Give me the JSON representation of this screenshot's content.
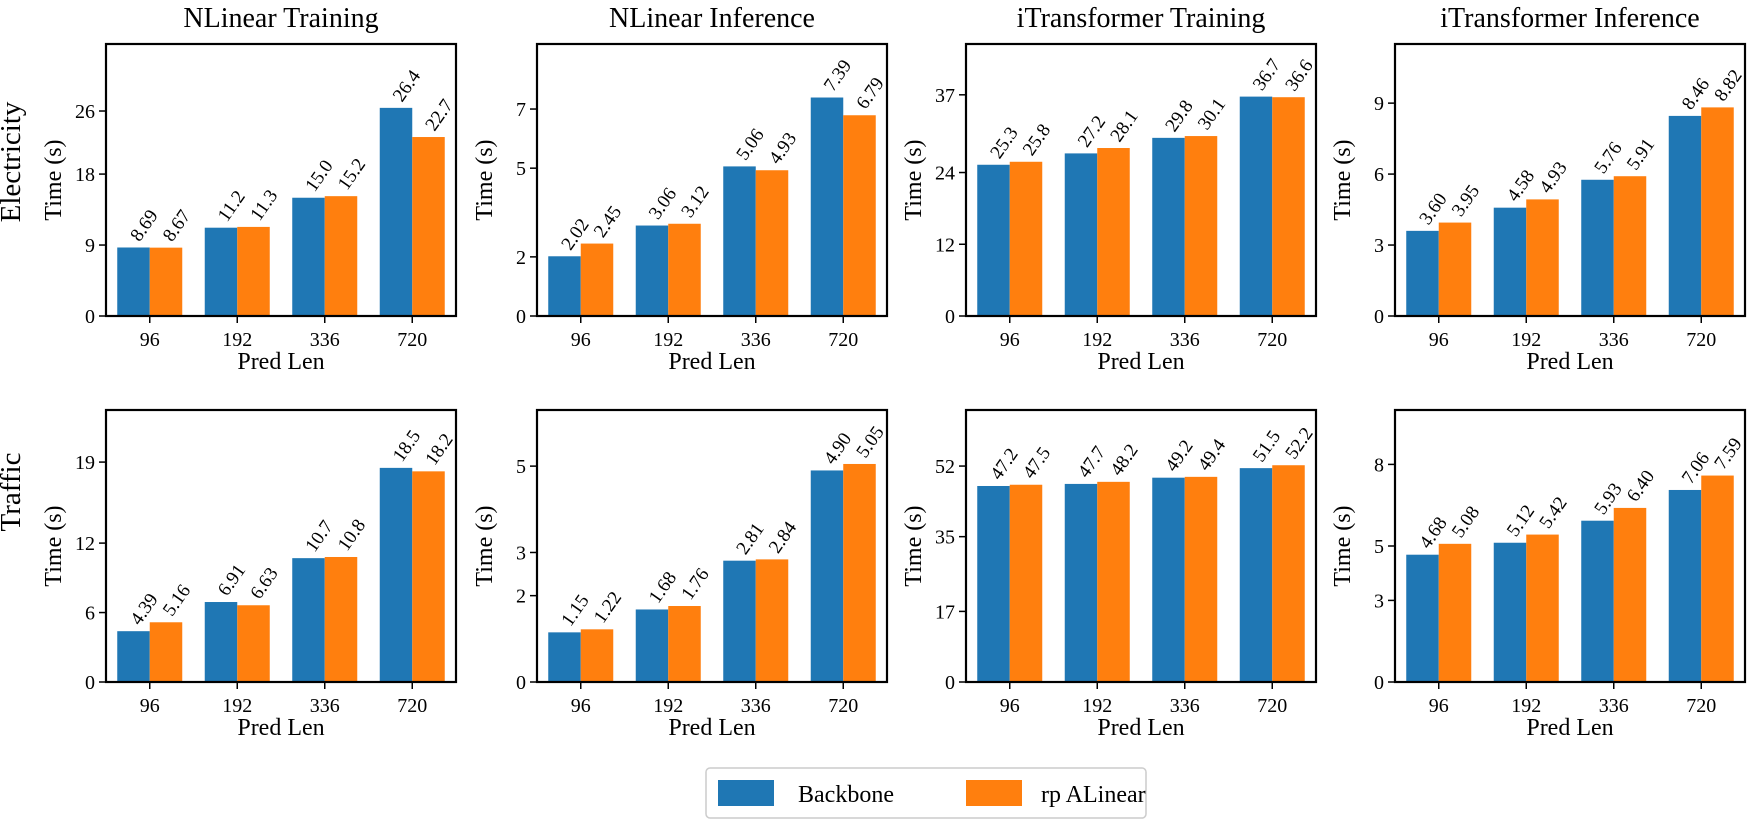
{
  "colors": {
    "backbone": "#1f77b4",
    "rp_alinear": "#ff7f0e"
  },
  "legend": {
    "placement": "bottom-center",
    "entries": [
      "Backbone",
      "rp ALinear"
    ]
  },
  "row_labels": [
    "Electricity",
    "Traffic"
  ],
  "chart_data": [
    {
      "type": "bar",
      "title": "NLinear Training",
      "row": "Electricity",
      "xlabel": "Pred Len",
      "ylabel": "Time (s)",
      "categories": [
        "96",
        "192",
        "336",
        "720"
      ],
      "ylim": [
        0,
        34.5
      ],
      "yticks": [
        0,
        9,
        18,
        26
      ],
      "series": [
        {
          "name": "Backbone",
          "values": [
            8.69,
            11.2,
            15.0,
            26.4
          ],
          "labels": [
            "8.69",
            "11.2",
            "15.0",
            "26.4"
          ]
        },
        {
          "name": "rp ALinear",
          "values": [
            8.67,
            11.3,
            15.2,
            22.7
          ],
          "labels": [
            "8.67",
            "11.3",
            "15.2",
            "22.7"
          ]
        }
      ]
    },
    {
      "type": "bar",
      "title": "NLinear Inference",
      "row": "Electricity",
      "xlabel": "Pred Len",
      "ylabel": "Time (s)",
      "categories": [
        "96",
        "192",
        "336",
        "720"
      ],
      "ylim": [
        0,
        9.2
      ],
      "yticks": [
        0,
        2,
        5,
        7
      ],
      "series": [
        {
          "name": "Backbone",
          "values": [
            2.02,
            3.06,
            5.06,
            7.39
          ],
          "labels": [
            "2.02",
            "3.06",
            "5.06",
            "7.39"
          ]
        },
        {
          "name": "rp ALinear",
          "values": [
            2.45,
            3.12,
            4.93,
            6.79
          ],
          "labels": [
            "2.45",
            "3.12",
            "4.93",
            "6.79"
          ]
        }
      ]
    },
    {
      "type": "bar",
      "title": "iTransformer Training",
      "row": "Electricity",
      "xlabel": "Pred Len",
      "ylabel": "Time (s)",
      "categories": [
        "96",
        "192",
        "336",
        "720"
      ],
      "ylim": [
        0,
        45.5
      ],
      "yticks": [
        0,
        12,
        24,
        37
      ],
      "series": [
        {
          "name": "Backbone",
          "values": [
            25.3,
            27.2,
            29.8,
            36.7
          ],
          "labels": [
            "25.3",
            "27.2",
            "29.8",
            "36.7"
          ]
        },
        {
          "name": "rp ALinear",
          "values": [
            25.8,
            28.1,
            30.1,
            36.6
          ],
          "labels": [
            "25.8",
            "28.1",
            "30.1",
            "36.6"
          ]
        }
      ]
    },
    {
      "type": "bar",
      "title": "iTransformer Inference",
      "row": "Electricity",
      "xlabel": "Pred Len",
      "ylabel": "Time (s)",
      "categories": [
        "96",
        "192",
        "336",
        "720"
      ],
      "ylim": [
        0,
        11.5
      ],
      "yticks": [
        0,
        3,
        6,
        9
      ],
      "series": [
        {
          "name": "Backbone",
          "values": [
            3.6,
            4.58,
            5.76,
            8.46
          ],
          "labels": [
            "3.60",
            "4.58",
            "5.76",
            "8.46"
          ]
        },
        {
          "name": "rp ALinear",
          "values": [
            3.95,
            4.93,
            5.91,
            8.82
          ],
          "labels": [
            "3.95",
            "4.93",
            "5.91",
            "8.82"
          ]
        }
      ]
    },
    {
      "type": "bar",
      "title": "",
      "row": "Traffic",
      "xlabel": "Pred Len",
      "ylabel": "Time (s)",
      "categories": [
        "96",
        "192",
        "336",
        "720"
      ],
      "ylim": [
        0,
        23.5
      ],
      "yticks": [
        0,
        6,
        12,
        19
      ],
      "series": [
        {
          "name": "Backbone",
          "values": [
            4.39,
            6.91,
            10.7,
            18.5
          ],
          "labels": [
            "4.39",
            "6.91",
            "10.7",
            "18.5"
          ]
        },
        {
          "name": "rp ALinear",
          "values": [
            5.16,
            6.63,
            10.8,
            18.2
          ],
          "labels": [
            "5.16",
            "6.63",
            "10.8",
            "18.2"
          ]
        }
      ]
    },
    {
      "type": "bar",
      "title": "",
      "row": "Traffic",
      "xlabel": "Pred Len",
      "ylabel": "Time (s)",
      "categories": [
        "96",
        "192",
        "336",
        "720"
      ],
      "ylim": [
        0,
        6.3
      ],
      "yticks": [
        0,
        2,
        3,
        5
      ],
      "series": [
        {
          "name": "Backbone",
          "values": [
            1.15,
            1.68,
            2.81,
            4.9
          ],
          "labels": [
            "1.15",
            "1.68",
            "2.81",
            "4.90"
          ]
        },
        {
          "name": "rp ALinear",
          "values": [
            1.22,
            1.76,
            2.84,
            5.05
          ],
          "labels": [
            "1.22",
            "1.76",
            "2.84",
            "5.05"
          ]
        }
      ]
    },
    {
      "type": "bar",
      "title": "",
      "row": "Traffic",
      "xlabel": "Pred Len",
      "ylabel": "Time (s)",
      "categories": [
        "96",
        "192",
        "336",
        "720"
      ],
      "ylim": [
        0,
        65.5
      ],
      "yticks": [
        0,
        17,
        35,
        52
      ],
      "series": [
        {
          "name": "Backbone",
          "values": [
            47.2,
            47.7,
            49.2,
            51.5
          ],
          "labels": [
            "47.2",
            "47.7",
            "49.2",
            "51.5"
          ]
        },
        {
          "name": "rp ALinear",
          "values": [
            47.5,
            48.2,
            49.4,
            52.2
          ],
          "labels": [
            "47.5",
            "48.2",
            "49.4",
            "52.2"
          ]
        }
      ]
    },
    {
      "type": "bar",
      "title": "",
      "row": "Traffic",
      "xlabel": "Pred Len",
      "ylabel": "Time (s)",
      "categories": [
        "96",
        "192",
        "336",
        "720"
      ],
      "ylim": [
        0,
        10.0
      ],
      "yticks": [
        0,
        3,
        5,
        8
      ],
      "series": [
        {
          "name": "Backbone",
          "values": [
            4.68,
            5.12,
            5.93,
            7.06
          ],
          "labels": [
            "4.68",
            "5.12",
            "5.93",
            "7.06"
          ]
        },
        {
          "name": "rp ALinear",
          "values": [
            5.08,
            5.42,
            6.4,
            7.59
          ],
          "labels": [
            "5.08",
            "5.42",
            "6.40",
            "7.59"
          ]
        }
      ]
    }
  ]
}
